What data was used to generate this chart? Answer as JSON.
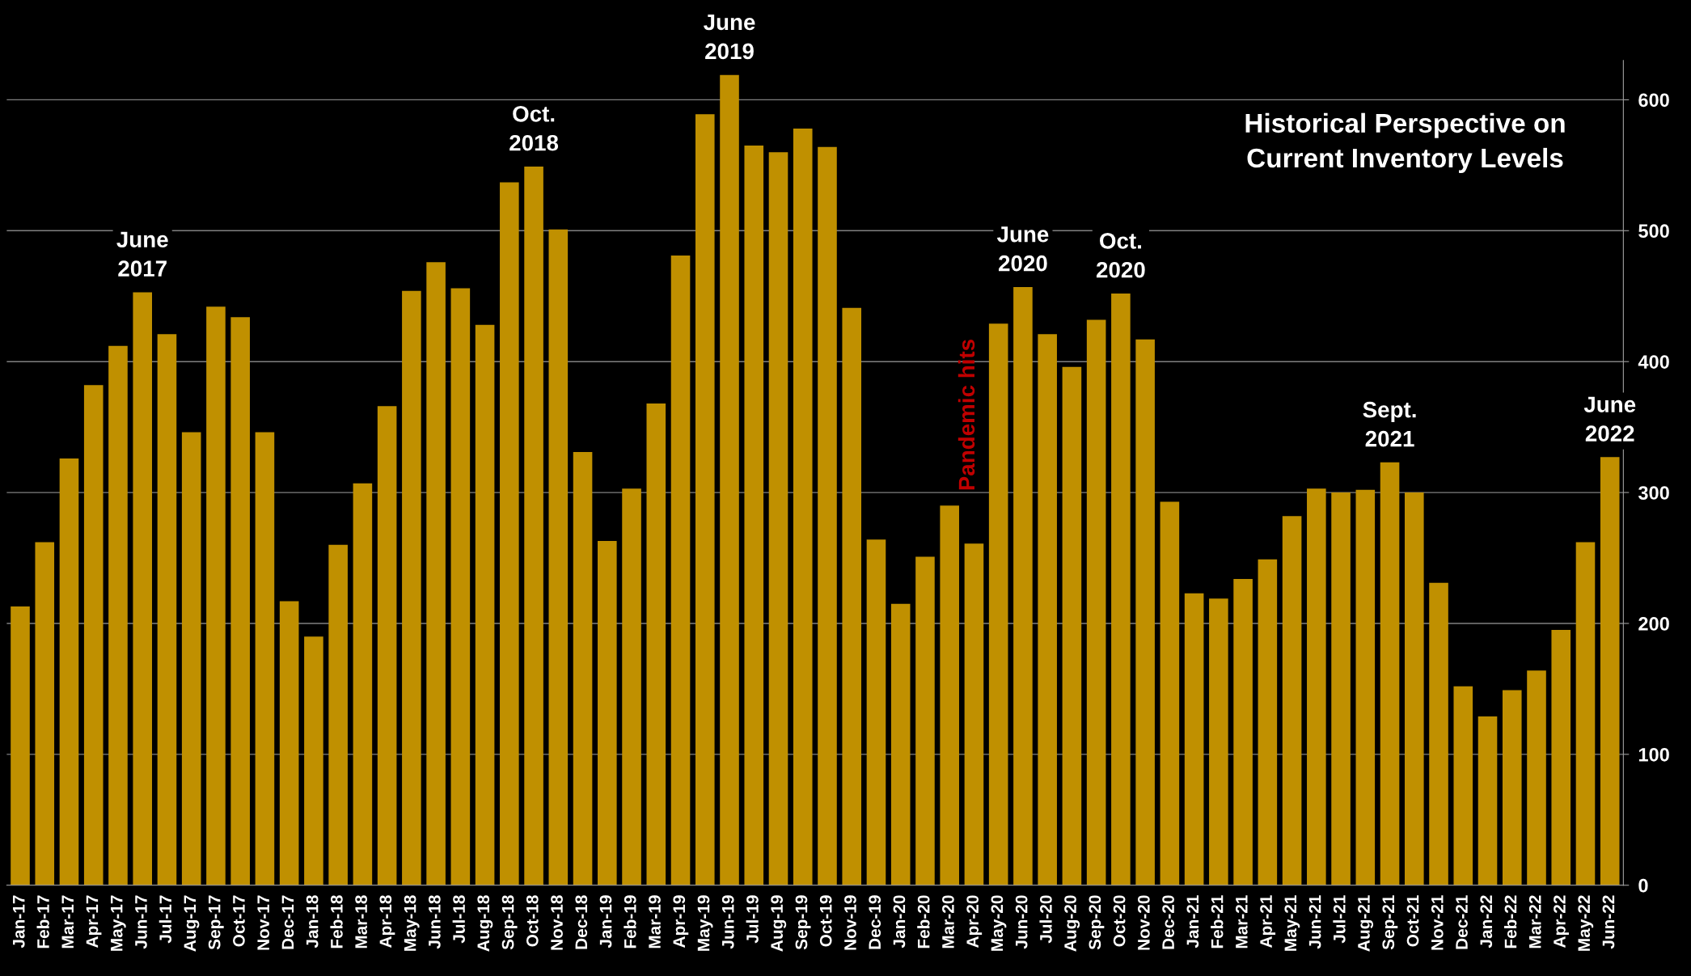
{
  "chart_data": {
    "type": "bar",
    "title": "Historical Perspective on\nCurrent Inventory Levels",
    "categories": [
      "Jan-17",
      "Feb-17",
      "Mar-17",
      "Apr-17",
      "May-17",
      "Jun-17",
      "Jul-17",
      "Aug-17",
      "Sep-17",
      "Oct-17",
      "Nov-17",
      "Dec-17",
      "Jan-18",
      "Feb-18",
      "Mar-18",
      "Apr-18",
      "May-18",
      "Jun-18",
      "Jul-18",
      "Aug-18",
      "Sep-18",
      "Oct-18",
      "Nov-18",
      "Dec-18",
      "Jan-19",
      "Feb-19",
      "Mar-19",
      "Apr-19",
      "May-19",
      "Jun-19",
      "Jul-19",
      "Aug-19",
      "Sep-19",
      "Oct-19",
      "Nov-19",
      "Dec-19",
      "Jan-20",
      "Feb-20",
      "Mar-20",
      "Apr-20",
      "May-20",
      "Jun-20",
      "Jul-20",
      "Aug-20",
      "Sep-20",
      "Oct-20",
      "Nov-20",
      "Dec-20",
      "Jan-21",
      "Feb-21",
      "Mar-21",
      "Apr-21",
      "May-21",
      "Jun-21",
      "Jul-21",
      "Aug-21",
      "Sep-21",
      "Oct-21",
      "Nov-21",
      "Dec-21",
      "Jan-22",
      "Feb-22",
      "Mar-22",
      "Apr-22",
      "May-22",
      "Jun-22"
    ],
    "values": [
      213,
      262,
      326,
      382,
      412,
      453,
      421,
      346,
      442,
      434,
      346,
      217,
      190,
      260,
      307,
      366,
      454,
      476,
      456,
      428,
      537,
      549,
      501,
      331,
      263,
      303,
      368,
      481,
      589,
      619,
      565,
      560,
      578,
      564,
      441,
      264,
      215,
      251,
      290,
      261,
      429,
      457,
      421,
      396,
      432,
      452,
      417,
      293,
      223,
      219,
      234,
      249,
      282,
      303,
      300,
      302,
      323,
      300,
      231,
      152,
      129,
      149,
      164,
      195,
      262,
      327
    ],
    "color": "#c09000",
    "ylim": [
      0,
      630
    ],
    "yticks": [
      0,
      100,
      200,
      300,
      400,
      500,
      600
    ],
    "grid": "y",
    "annotations": [
      {
        "text": "June\n2017",
        "x": "Jun-17",
        "y": 453
      },
      {
        "text": "Oct.\n2018",
        "x": "Oct-18",
        "y": 549
      },
      {
        "text": "June\n2019",
        "x": "Jun-19",
        "y": 619
      },
      "Pandemic hits",
      {
        "text": "June\n2020",
        "x": "Jun-20",
        "y": 457
      },
      {
        "text": "Oct.\n2020",
        "x": "Oct-20",
        "y": 452
      },
      {
        "text": "Sept.\n2021",
        "x": "Sep-21",
        "y": 323
      },
      {
        "text": "June\n2022",
        "x": "Jun-22",
        "y": 327
      }
    ]
  }
}
